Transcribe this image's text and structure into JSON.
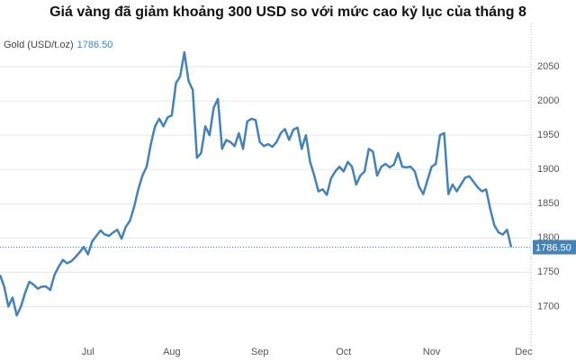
{
  "chart_data": {
    "type": "line",
    "title": "Giá vàng đã giảm khoảng 300 USD so với mức cao kỷ lục của tháng 8",
    "categories": [
      null,
      null,
      null,
      null,
      null,
      null,
      null,
      null,
      null,
      null,
      null,
      null,
      null,
      null,
      null,
      null,
      null,
      null,
      null,
      null,
      null,
      "Jul",
      null,
      null,
      null,
      null,
      null,
      null,
      null,
      null,
      null,
      null,
      null,
      null,
      null,
      null,
      null,
      null,
      null,
      null,
      null,
      "Aug",
      null,
      null,
      null,
      null,
      null,
      null,
      null,
      null,
      null,
      null,
      null,
      null,
      null,
      null,
      null,
      null,
      null,
      null,
      null,
      null,
      "Sep",
      null,
      null,
      null,
      null,
      null,
      null,
      null,
      null,
      null,
      null,
      null,
      null,
      null,
      null,
      null,
      null,
      null,
      null,
      null,
      "Oct",
      null,
      null,
      null,
      null,
      null,
      null,
      null,
      null,
      null,
      null,
      null,
      null,
      null,
      null,
      null,
      null,
      null,
      null,
      null,
      null,
      "Nov",
      null,
      null,
      null,
      null,
      null,
      null,
      null,
      null,
      null,
      null,
      null,
      null,
      null,
      null,
      null,
      null,
      null,
      null,
      null,
      null,
      null,
      "Dec"
    ],
    "series": [
      {
        "name": "Gold (USD/t.oz)",
        "color": "#4682b4",
        "last_label": "1786.50",
        "values": [
          1746,
          1729,
          1700,
          1713,
          1687,
          1700,
          1720,
          1736,
          1732,
          1726,
          1729,
          1729,
          1724,
          1746,
          1758,
          1768,
          1763,
          1766,
          1772,
          1779,
          1787,
          1776,
          1795,
          1803,
          1811,
          1805,
          1803,
          1808,
          1812,
          1799,
          1816,
          1825,
          1845,
          1871,
          1891,
          1904,
          1937,
          1963,
          1974,
          1963,
          1976,
          1979,
          2026,
          2036,
          2071,
          2029,
          2016,
          1917,
          1924,
          1963,
          1950,
          1990,
          2003,
          1930,
          1943,
          1940,
          1934,
          1953,
          1930,
          1970,
          1974,
          1972,
          1940,
          1934,
          1937,
          1933,
          1940,
          1953,
          1959,
          1943,
          1958,
          1961,
          1930,
          1950,
          1911,
          1891,
          1868,
          1871,
          1863,
          1887,
          1897,
          1904,
          1897,
          1911,
          1904,
          1878,
          1891,
          1897,
          1930,
          1926,
          1891,
          1904,
          1908,
          1903,
          1907,
          1924,
          1904,
          1903,
          1904,
          1897,
          1875,
          1864,
          1884,
          1904,
          1908,
          1950,
          1953,
          1864,
          1878,
          1868,
          1878,
          1888,
          1890,
          1882,
          1874,
          1868,
          1871,
          1842,
          1818,
          1808,
          1805,
          1812,
          1786.5,
          null,
          null,
          null
        ]
      }
    ],
    "ylim": [
      1640,
      2100
    ],
    "yticks": [
      1700,
      1750,
      1800,
      1850,
      1900,
      1950,
      2000,
      2050
    ],
    "grid": true
  }
}
